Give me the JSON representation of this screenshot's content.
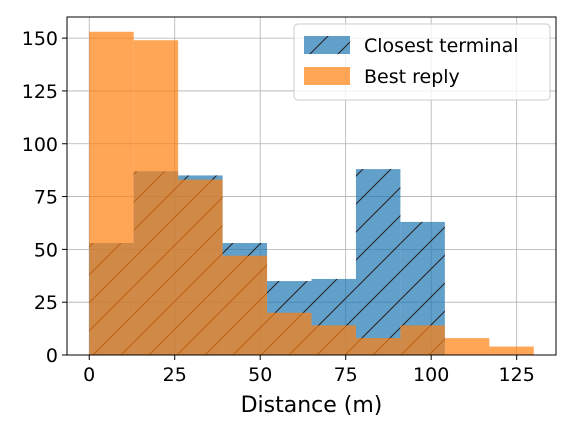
{
  "chart_data": {
    "type": "bar",
    "subtype": "histogram-overlay",
    "xlabel": "Distance (m)",
    "ylabel": "",
    "xlim": [
      -6.5,
      136.5
    ],
    "ylim": [
      0,
      160
    ],
    "xticks": [
      0,
      25,
      50,
      75,
      100,
      125
    ],
    "yticks": [
      0,
      25,
      50,
      75,
      100,
      125,
      150
    ],
    "grid": true,
    "legend_position": "top-right",
    "series": [
      {
        "name": "Closest terminal",
        "color": "#1f77b4",
        "hatch": "diagonal",
        "bins": [
          {
            "x0": 0,
            "x1": 13,
            "value": 53
          },
          {
            "x0": 13,
            "x1": 26,
            "value": 87
          },
          {
            "x0": 26,
            "x1": 39,
            "value": 85
          },
          {
            "x0": 39,
            "x1": 52,
            "value": 53
          },
          {
            "x0": 52,
            "x1": 65,
            "value": 35
          },
          {
            "x0": 65,
            "x1": 78,
            "value": 36
          },
          {
            "x0": 78,
            "x1": 91,
            "value": 88
          },
          {
            "x0": 91,
            "x1": 104,
            "value": 63
          }
        ]
      },
      {
        "name": "Best reply",
        "color": "#ff7f0e",
        "hatch": "none",
        "bins": [
          {
            "x0": 0,
            "x1": 13,
            "value": 153
          },
          {
            "x0": 13,
            "x1": 26,
            "value": 149
          },
          {
            "x0": 26,
            "x1": 39,
            "value": 83
          },
          {
            "x0": 39,
            "x1": 52,
            "value": 47
          },
          {
            "x0": 52,
            "x1": 65,
            "value": 20
          },
          {
            "x0": 65,
            "x1": 78,
            "value": 14
          },
          {
            "x0": 78,
            "x1": 91,
            "value": 8
          },
          {
            "x0": 91,
            "x1": 104,
            "value": 14
          },
          {
            "x0": 104,
            "x1": 117,
            "value": 8
          },
          {
            "x0": 117,
            "x1": 130,
            "value": 4
          }
        ]
      }
    ]
  }
}
